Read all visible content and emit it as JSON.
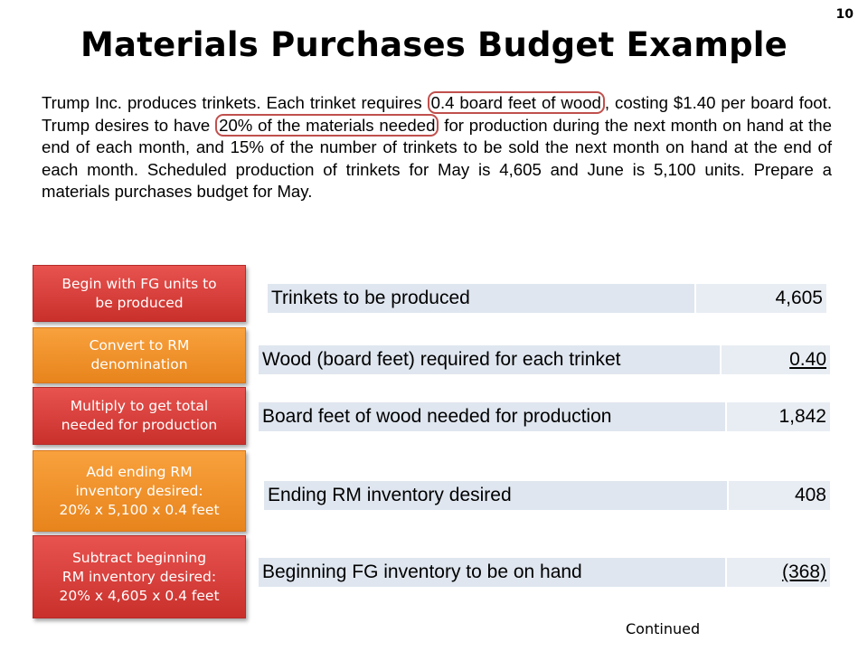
{
  "slide": {
    "page_number": "10",
    "title": "Materials Purchases Budget Example",
    "continued": "Continued"
  },
  "paragraph": {
    "p1": "Trump Inc. produces trinkets. Each trinket requires ",
    "h1": "0.4 board feet of wood",
    "p2": ", costing $1.40 per board foot. Trump desires to have ",
    "h2": "20% of the materials needed",
    "p3": " for production during the next month on hand at the end of each month, and 15% of the number of trinkets to be sold the next month on hand at the end of each month. Scheduled production of trinkets for May is 4,605 and June is 5,100 units. Prepare a materials purchases budget for May."
  },
  "steps": [
    {
      "line1": "Begin with FG units to",
      "line2": "be produced",
      "line3": "",
      "color": "#d9423e"
    },
    {
      "line1": "Convert to RM",
      "line2": "denomination",
      "line3": "",
      "color": "#f39530"
    },
    {
      "line1": "Multiply to get total",
      "line2": "needed for production",
      "line3": "",
      "color": "#d9423e"
    },
    {
      "line1": "Add ending RM",
      "line2": "inventory desired:",
      "line3": "20% x 5,100 x 0.4 feet",
      "color": "#f39530"
    },
    {
      "line1": "Subtract beginning",
      "line2": "RM inventory desired:",
      "line3": "20% x 4,605 x 0.4 feet",
      "color": "#d9423e"
    }
  ],
  "rows": [
    {
      "label": "Trinkets to be produced",
      "value": "4,605"
    },
    {
      "label": "Wood (board feet) required for each trinket",
      "value": "0.40"
    },
    {
      "label": "Board feet of wood needed for production",
      "value": "1,842"
    },
    {
      "label": "Ending RM inventory desired",
      "value": "408"
    },
    {
      "label": "Beginning FG inventory to be on hand",
      "value": "(368)"
    }
  ]
}
